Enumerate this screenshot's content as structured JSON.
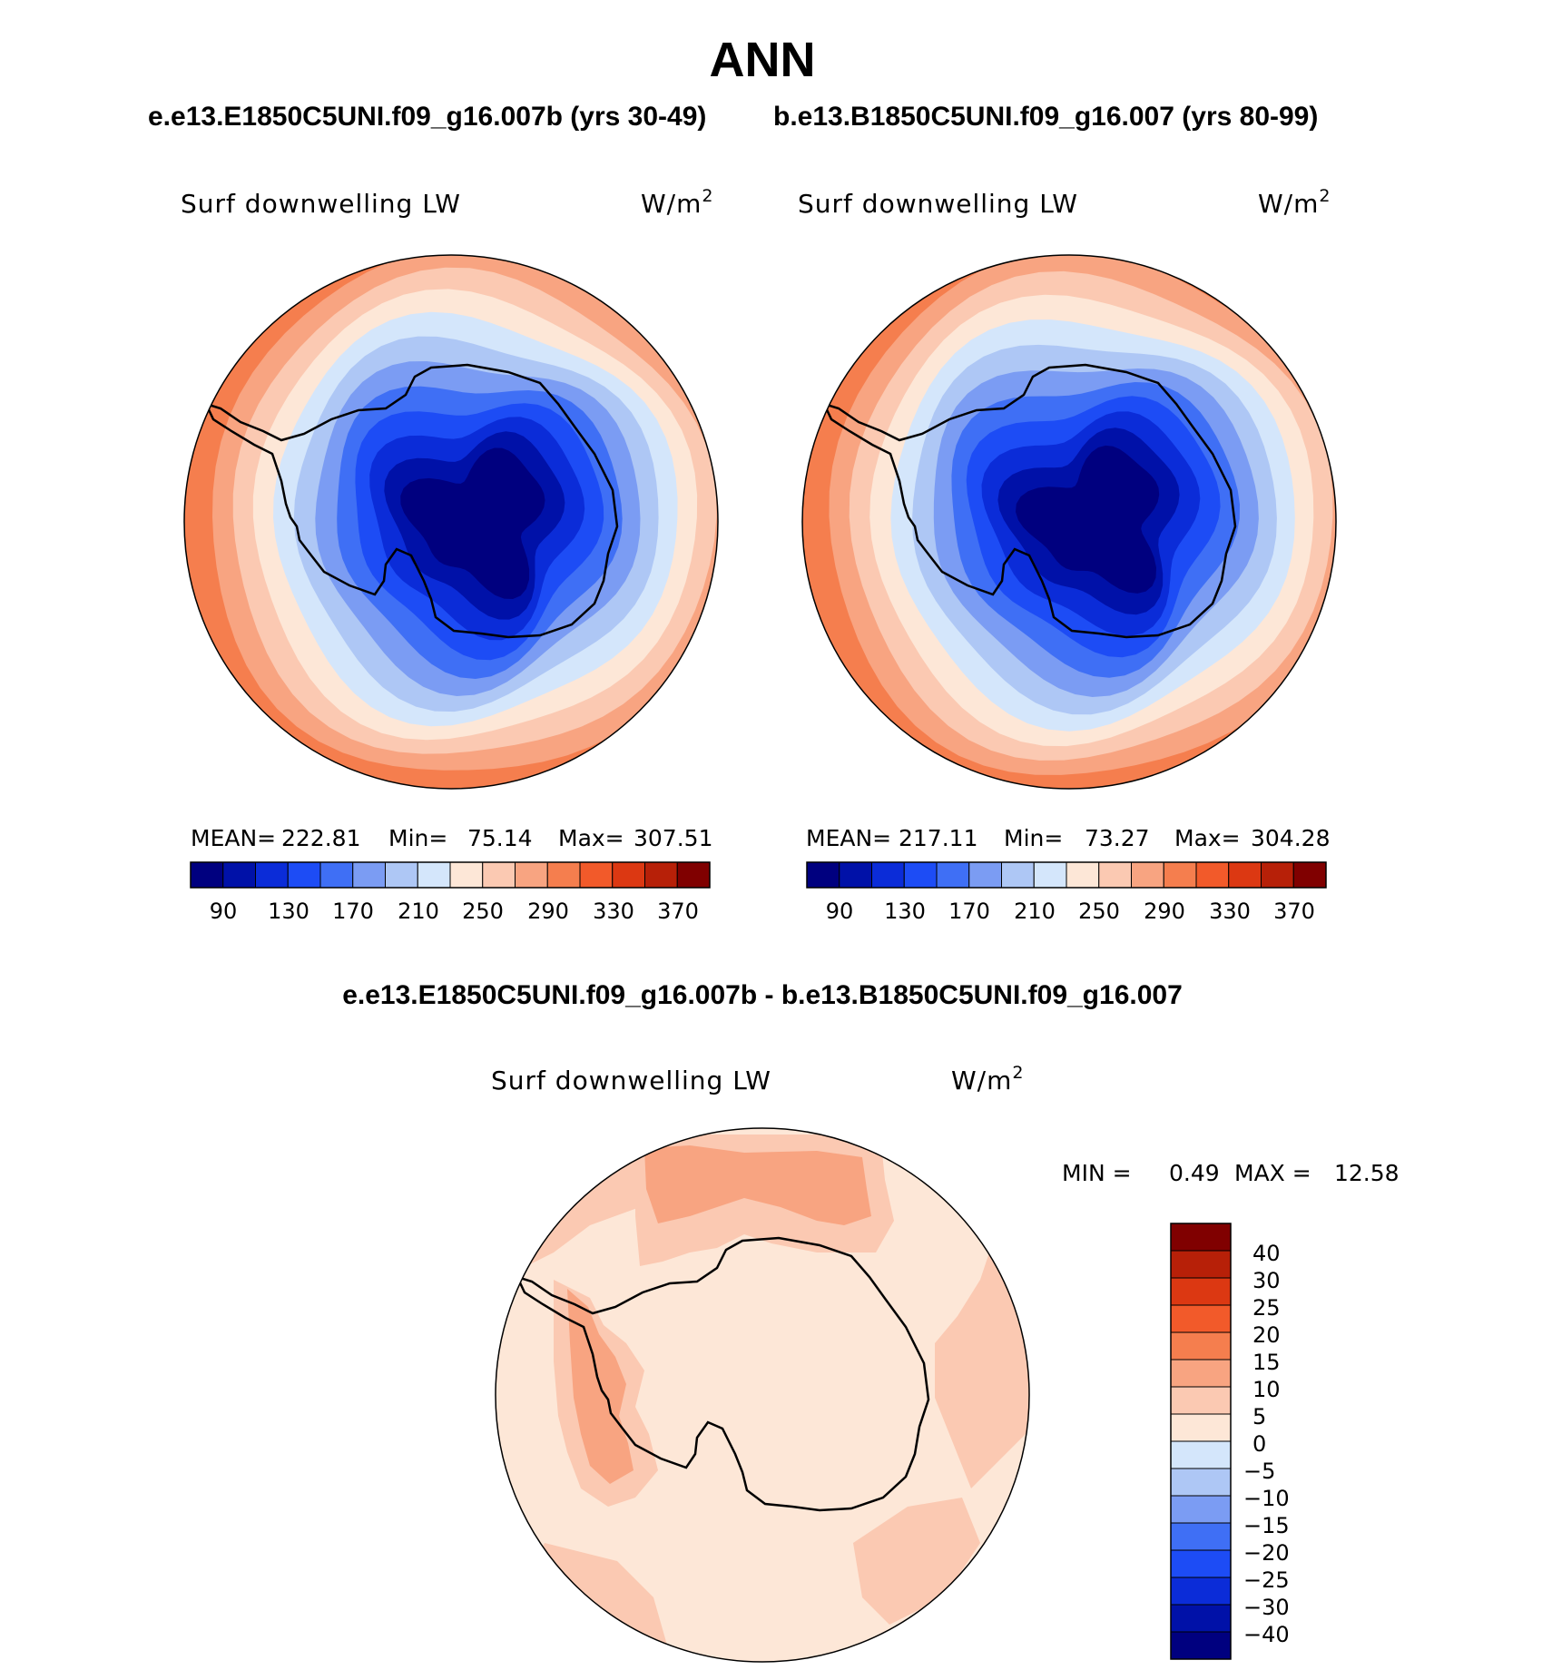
{
  "figure": {
    "title": "ANN",
    "subtitle_left": "e.e13.E1850C5UNI.f09_g16.007b (yrs 30-49)",
    "subtitle_right": "b.e13.B1850C5UNI.f09_g16.007 (yrs 80-99)",
    "diff_title": "e.e13.E1850C5UNI.f09_g16.007b - b.e13.B1850C5UNI.f09_g16.007"
  },
  "chart_data": [
    {
      "type": "heatmap",
      "projection": "south-polar-stereographic",
      "region": "Antarctica",
      "variable": "Surf downwelling LW",
      "units_base": "W/m",
      "units_exp": "2",
      "stats": {
        "mean_label": "MEAN=",
        "mean": "222.81",
        "min_label": "Min=",
        "min": "75.14",
        "max_label": "Max=",
        "max": "307.51"
      },
      "colorbar": {
        "orientation": "horizontal",
        "tick_labels": [
          "90",
          "130",
          "170",
          "210",
          "250",
          "290",
          "330",
          "370"
        ],
        "colors": [
          "#00007f",
          "#0011a8",
          "#0b2cd8",
          "#1d4cf5",
          "#3f6ff5",
          "#7b9cf3",
          "#aec7f5",
          "#d4e6fb",
          "#fde7d7",
          "#fbc9b2",
          "#f8a481",
          "#f57e4e",
          "#f25a2a",
          "#dc3812",
          "#b72008",
          "#800000"
        ]
      },
      "rings_outer_to_inner": [
        {
          "level": 310,
          "color": "#f57e4e"
        },
        {
          "level": 290,
          "color": "#f8a481"
        },
        {
          "level": 270,
          "color": "#fbc9b2"
        },
        {
          "level": 250,
          "color": "#fde7d7"
        },
        {
          "level": 230,
          "color": "#d4e6fb"
        },
        {
          "level": 210,
          "color": "#aec7f5"
        },
        {
          "level": 190,
          "color": "#7b9cf3"
        },
        {
          "level": 170,
          "color": "#3f6ff5"
        },
        {
          "level": 150,
          "color": "#1d4cf5"
        },
        {
          "level": 130,
          "color": "#0b2cd8"
        },
        {
          "level": 110,
          "color": "#0011a8"
        },
        {
          "level": 90,
          "color": "#00007f"
        }
      ]
    },
    {
      "type": "heatmap",
      "projection": "south-polar-stereographic",
      "region": "Antarctica",
      "variable": "Surf downwelling LW",
      "units_base": "W/m",
      "units_exp": "2",
      "stats": {
        "mean_label": "MEAN=",
        "mean": "217.11",
        "min_label": "Min=",
        "min": "73.27",
        "max_label": "Max=",
        "max": "304.28"
      },
      "colorbar": {
        "orientation": "horizontal",
        "tick_labels": [
          "90",
          "130",
          "170",
          "210",
          "250",
          "290",
          "330",
          "370"
        ],
        "colors": [
          "#00007f",
          "#0011a8",
          "#0b2cd8",
          "#1d4cf5",
          "#3f6ff5",
          "#7b9cf3",
          "#aec7f5",
          "#d4e6fb",
          "#fde7d7",
          "#fbc9b2",
          "#f8a481",
          "#f57e4e",
          "#f25a2a",
          "#dc3812",
          "#b72008",
          "#800000"
        ]
      },
      "rings_outer_to_inner": [
        {
          "level": 310,
          "color": "#f57e4e"
        },
        {
          "level": 290,
          "color": "#f8a481"
        },
        {
          "level": 270,
          "color": "#fbc9b2"
        },
        {
          "level": 250,
          "color": "#fde7d7"
        },
        {
          "level": 230,
          "color": "#d4e6fb"
        },
        {
          "level": 210,
          "color": "#aec7f5"
        },
        {
          "level": 190,
          "color": "#7b9cf3"
        },
        {
          "level": 170,
          "color": "#3f6ff5"
        },
        {
          "level": 150,
          "color": "#1d4cf5"
        },
        {
          "level": 130,
          "color": "#0b2cd8"
        },
        {
          "level": 110,
          "color": "#0011a8"
        },
        {
          "level": 90,
          "color": "#00007f"
        }
      ]
    },
    {
      "type": "heatmap",
      "projection": "south-polar-stereographic",
      "region": "Antarctica",
      "variable": "Surf downwelling LW",
      "units_base": "W/m",
      "units_exp": "2",
      "stats": {
        "min_label": "MIN =",
        "min": "0.49",
        "max_label": "MAX =",
        "max": "12.58"
      },
      "colorbar": {
        "orientation": "vertical",
        "tick_labels": [
          "40",
          "30",
          "25",
          "20",
          "15",
          "10",
          "5",
          "0",
          "−5",
          "−10",
          "−15",
          "−20",
          "−25",
          "−30",
          "−40"
        ],
        "colors_top_to_bottom": [
          "#800000",
          "#b72008",
          "#dc3812",
          "#f25a2a",
          "#f57e4e",
          "#f8a481",
          "#fbc9b2",
          "#fde7d7",
          "#d4e6fb",
          "#aec7f5",
          "#7b9cf3",
          "#3f6ff5",
          "#1d4cf5",
          "#0b2cd8",
          "#0011a8",
          "#00007f"
        ]
      },
      "base_color": "#fde7d7",
      "patches": [
        {
          "range": "5 to 10",
          "color": "#fbc9b2"
        },
        {
          "range": "10 to 15",
          "color": "#f8a481"
        }
      ]
    }
  ]
}
